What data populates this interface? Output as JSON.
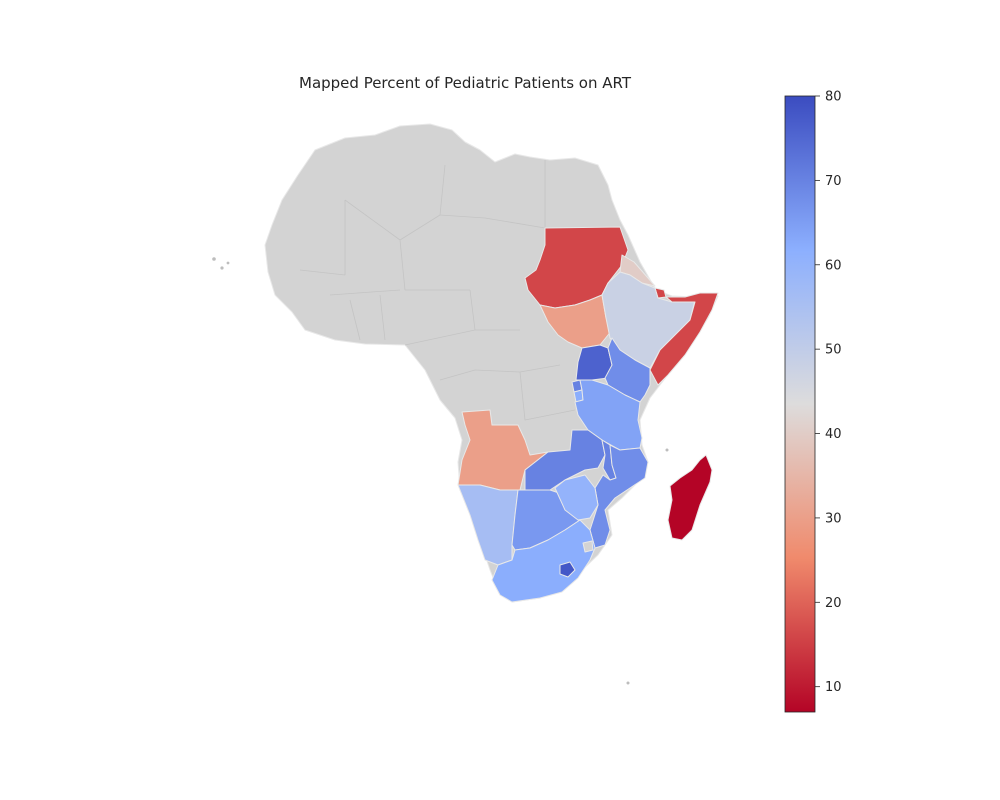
{
  "chart_data": {
    "type": "choropleth",
    "title": "Mapped Percent of Pediatric Patients on ART",
    "colorbar": {
      "colormap": "coolwarm_r",
      "range": [
        7,
        80
      ],
      "ticks": [
        "10",
        "20",
        "30",
        "40",
        "50",
        "60",
        "70",
        "80"
      ],
      "tick_values": [
        10,
        20,
        30,
        40,
        50,
        60,
        70,
        80
      ],
      "placement": "right"
    },
    "no_data_color": "#d3d3d3",
    "regions": [
      {
        "id": "sudan",
        "value": 16
      },
      {
        "id": "eritrea",
        "value": 40
      },
      {
        "id": "djibouti",
        "value": 16
      },
      {
        "id": "south-sudan",
        "value": 30
      },
      {
        "id": "ethiopia",
        "value": 48
      },
      {
        "id": "somalia",
        "value": 16
      },
      {
        "id": "uganda",
        "value": 76
      },
      {
        "id": "kenya",
        "value": 68
      },
      {
        "id": "rwanda",
        "value": 70
      },
      {
        "id": "burundi",
        "value": 62
      },
      {
        "id": "tanzania",
        "value": 64
      },
      {
        "id": "angola",
        "value": 30
      },
      {
        "id": "zambia",
        "value": 70
      },
      {
        "id": "malawi",
        "value": 70
      },
      {
        "id": "mozambique",
        "value": 68
      },
      {
        "id": "madagascar",
        "value": 7
      },
      {
        "id": "namibia",
        "value": 56
      },
      {
        "id": "botswana",
        "value": 66
      },
      {
        "id": "zimbabwe",
        "value": 60
      },
      {
        "id": "south-africa",
        "value": 62
      },
      {
        "id": "lesotho",
        "value": 78
      }
    ]
  }
}
